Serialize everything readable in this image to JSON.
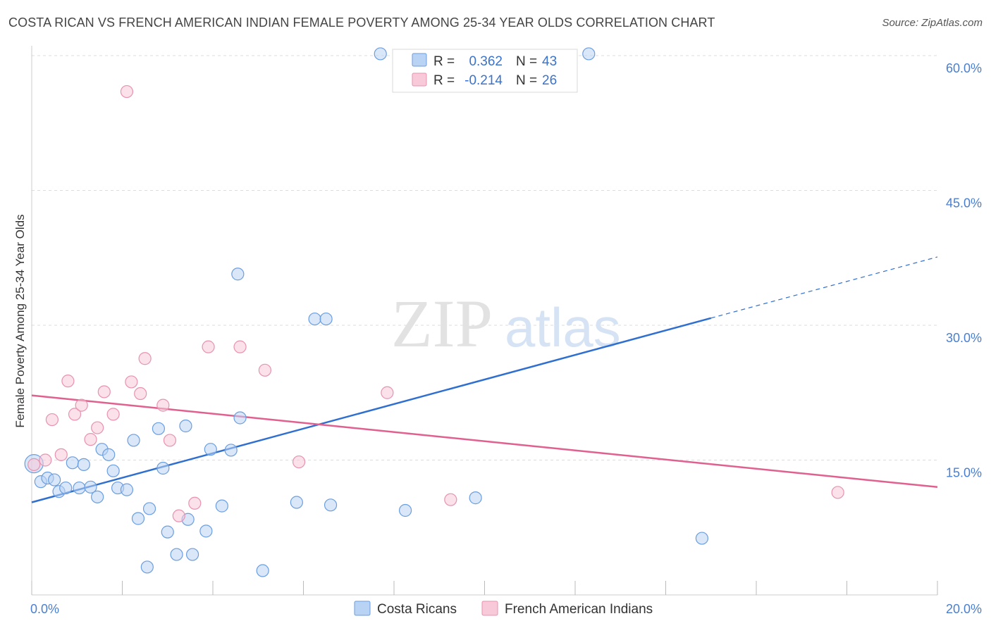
{
  "title": "COSTA RICAN VS FRENCH AMERICAN INDIAN FEMALE POVERTY AMONG 25-34 YEAR OLDS CORRELATION CHART",
  "source": "Source: ZipAtlas.com",
  "watermark": {
    "zip": "ZIP",
    "atlas": "atlas"
  },
  "colors": {
    "blue_fill": "#b9d3f4",
    "blue_stroke": "#6b9ee0",
    "blue_line": "#2f6fcf",
    "pink_fill": "#f8c9d8",
    "pink_stroke": "#e892ae",
    "pink_line": "#e0608f",
    "grid": "#dddddd",
    "tick_label": "#4a7fd0"
  },
  "legend": {
    "rows": [
      {
        "r_label": "R =",
        "r_value": "0.362",
        "n_label": "N =",
        "n_value": "43"
      },
      {
        "r_label": "R =",
        "r_value": "-0.214",
        "n_label": "N =",
        "n_value": "26"
      }
    ]
  },
  "chart_data": {
    "type": "scatter",
    "title": "COSTA RICAN VS FRENCH AMERICAN INDIAN FEMALE POVERTY AMONG 25-34 YEAR OLDS CORRELATION CHART",
    "xlabel": "",
    "ylabel": "Female Poverty Among 25-34 Year Olds",
    "xlim": [
      0,
      20
    ],
    "ylim": [
      0,
      60
    ],
    "x_tick_labels": [
      "0.0%",
      "20.0%"
    ],
    "y_ticks": [
      15,
      30,
      45,
      60
    ],
    "y_tick_labels": [
      "15.0%",
      "30.0%",
      "45.0%",
      "60.0%"
    ],
    "grid": true,
    "legend_position": "bottom",
    "series": [
      {
        "name": "Costa Ricans",
        "color": "blue",
        "r": 0.362,
        "n": 43,
        "points": [
          [
            0.05,
            14.6
          ],
          [
            0.2,
            12.6
          ],
          [
            0.35,
            13.0
          ],
          [
            0.5,
            12.8
          ],
          [
            0.6,
            11.5
          ],
          [
            0.75,
            11.9
          ],
          [
            0.9,
            14.7
          ],
          [
            1.05,
            11.9
          ],
          [
            1.15,
            14.5
          ],
          [
            1.3,
            12.0
          ],
          [
            1.45,
            10.9
          ],
          [
            1.55,
            16.2
          ],
          [
            1.7,
            15.6
          ],
          [
            1.8,
            13.8
          ],
          [
            1.9,
            11.9
          ],
          [
            2.1,
            11.7
          ],
          [
            2.25,
            17.2
          ],
          [
            2.35,
            8.5
          ],
          [
            2.55,
            3.1
          ],
          [
            2.6,
            9.6
          ],
          [
            2.8,
            18.5
          ],
          [
            2.9,
            14.1
          ],
          [
            3.0,
            7.0
          ],
          [
            3.2,
            4.5
          ],
          [
            3.4,
            18.8
          ],
          [
            3.45,
            8.4
          ],
          [
            3.55,
            4.5
          ],
          [
            3.85,
            7.1
          ],
          [
            3.95,
            16.2
          ],
          [
            4.2,
            9.9
          ],
          [
            4.4,
            16.1
          ],
          [
            4.55,
            35.7
          ],
          [
            4.6,
            19.7
          ],
          [
            5.1,
            2.7
          ],
          [
            5.85,
            10.3
          ],
          [
            6.25,
            30.7
          ],
          [
            6.5,
            30.7
          ],
          [
            6.6,
            10.0
          ],
          [
            7.7,
            60.2
          ],
          [
            8.25,
            9.4
          ],
          [
            9.8,
            10.8
          ],
          [
            12.3,
            60.2
          ],
          [
            14.8,
            6.3
          ]
        ]
      },
      {
        "name": "French American Indians",
        "color": "pink",
        "r": -0.214,
        "n": 26,
        "points": [
          [
            0.05,
            14.5
          ],
          [
            0.3,
            15.0
          ],
          [
            0.45,
            19.5
          ],
          [
            0.65,
            15.6
          ],
          [
            0.8,
            23.8
          ],
          [
            0.95,
            20.1
          ],
          [
            1.1,
            21.1
          ],
          [
            1.3,
            17.3
          ],
          [
            1.45,
            18.6
          ],
          [
            1.6,
            22.6
          ],
          [
            1.8,
            20.1
          ],
          [
            2.1,
            56.0
          ],
          [
            2.2,
            23.7
          ],
          [
            2.4,
            22.4
          ],
          [
            2.5,
            26.3
          ],
          [
            2.9,
            21.1
          ],
          [
            3.05,
            17.2
          ],
          [
            3.25,
            8.8
          ],
          [
            3.6,
            10.2
          ],
          [
            3.9,
            27.6
          ],
          [
            4.6,
            27.6
          ],
          [
            5.15,
            25.0
          ],
          [
            5.9,
            14.8
          ],
          [
            7.85,
            22.5
          ],
          [
            9.25,
            10.6
          ],
          [
            17.8,
            11.4
          ]
        ]
      }
    ],
    "trend_lines": [
      {
        "series": "Costa Ricans",
        "from": [
          0,
          10.3
        ],
        "to": [
          15.0,
          30.8
        ],
        "dashed_to": [
          20.0,
          37.6
        ]
      },
      {
        "series": "French American Indians",
        "from": [
          0,
          22.2
        ],
        "to": [
          20.0,
          12.0
        ]
      }
    ]
  }
}
